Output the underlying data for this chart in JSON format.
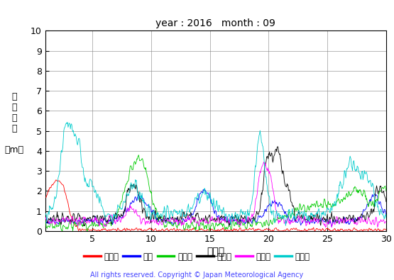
{
  "title": "year : 2016   month : 09",
  "xlabel": "（日）",
  "ylabel_chars": [
    "有",
    "義",
    "波",
    "高",
    "",
    "（m）"
  ],
  "xlim": [
    1,
    30
  ],
  "ylim": [
    0,
    10
  ],
  "yticks": [
    0,
    1,
    2,
    3,
    4,
    5,
    6,
    7,
    8,
    9,
    10
  ],
  "xticks": [
    5,
    10,
    15,
    20,
    25,
    30
  ],
  "legend_labels": [
    "上ノ国",
    "唐桑",
    "石廈崎",
    "経ヶ岸",
    "生月島",
    "屋久島"
  ],
  "legend_colors": [
    "#ff0000",
    "#0000ff",
    "#00cc00",
    "#000000",
    "#ff00ff",
    "#00cccc"
  ],
  "copyright": "All rights reserved. Copyright © Japan Meteorological Agency",
  "copyright_color": "#4444ff",
  "n_points": 720
}
